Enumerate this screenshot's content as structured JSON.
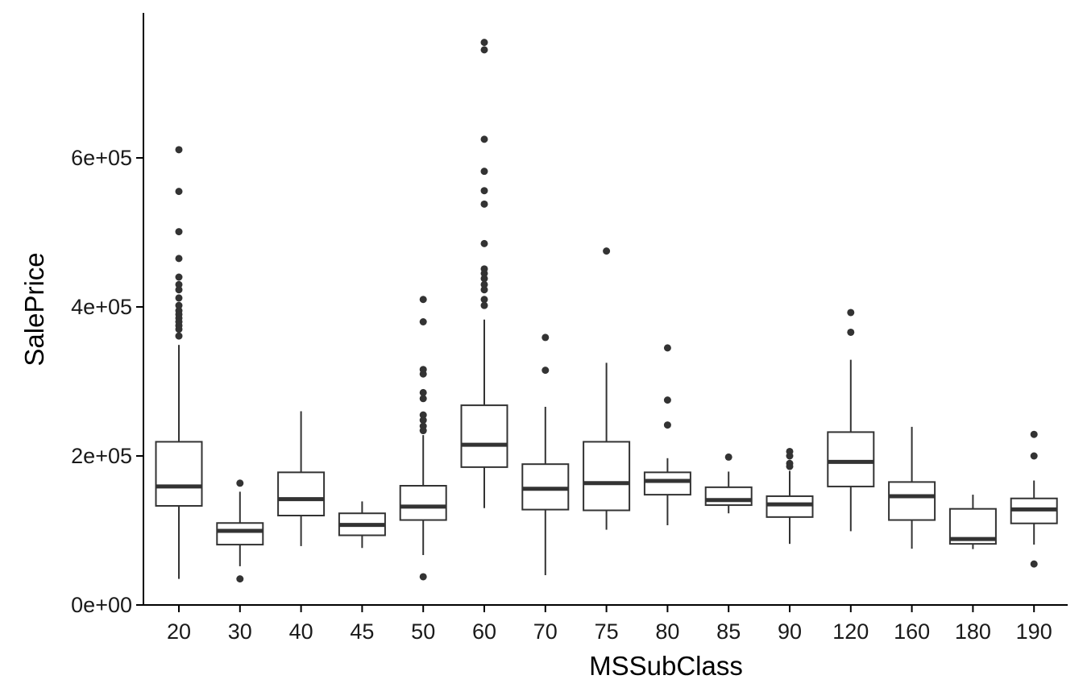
{
  "chart_data": {
    "type": "boxplot",
    "xlabel": "MSSubClass",
    "ylabel": "SalePrice",
    "ylim": [
      0,
      790000
    ],
    "yticks": [
      {
        "value": 0,
        "label": "0e+00"
      },
      {
        "value": 200000,
        "label": "2e+05"
      },
      {
        "value": 400000,
        "label": "4e+05"
      },
      {
        "value": 600000,
        "label": "6e+05"
      }
    ],
    "grid": false,
    "categories": [
      "20",
      "30",
      "40",
      "45",
      "50",
      "60",
      "70",
      "75",
      "80",
      "85",
      "90",
      "120",
      "160",
      "180",
      "190"
    ],
    "boxes": [
      {
        "category": "20",
        "whisker_low": 35000,
        "q1": 133000,
        "median": 159000,
        "q3": 219000,
        "whisker_high": 349000,
        "outliers": [
          611000,
          555000,
          501000,
          465000,
          440000,
          430000,
          423000,
          412000,
          402000,
          395000,
          390000,
          385000,
          380000,
          375000,
          370000,
          361000
        ]
      },
      {
        "category": "30",
        "whisker_low": 52000,
        "q1": 81000,
        "median": 99500,
        "q3": 110000,
        "whisker_high": 152000,
        "outliers": [
          163500,
          35000
        ]
      },
      {
        "category": "40",
        "whisker_low": 79000,
        "q1": 120000,
        "median": 142000,
        "q3": 178000,
        "whisker_high": 260000,
        "outliers": []
      },
      {
        "category": "45",
        "whisker_low": 76500,
        "q1": 93500,
        "median": 107500,
        "q3": 123000,
        "whisker_high": 139000,
        "outliers": []
      },
      {
        "category": "50",
        "whisker_low": 67000,
        "q1": 114000,
        "median": 132000,
        "q3": 160000,
        "whisker_high": 228000,
        "outliers": [
          410000,
          380000,
          316000,
          310000,
          285000,
          277000,
          255000,
          248000,
          240000,
          234000,
          37900
        ]
      },
      {
        "category": "60",
        "whisker_low": 130000,
        "q1": 185000,
        "median": 215000,
        "q3": 268000,
        "whisker_high": 383000,
        "outliers": [
          755000,
          745000,
          625000,
          582000,
          556000,
          538000,
          485000,
          451000,
          445000,
          438000,
          430000,
          423000,
          410000,
          402000
        ]
      },
      {
        "category": "70",
        "whisker_low": 40000,
        "q1": 128000,
        "median": 156000,
        "q3": 189000,
        "whisker_high": 266000,
        "outliers": [
          359000,
          315000
        ]
      },
      {
        "category": "75",
        "whisker_low": 101000,
        "q1": 127000,
        "median": 163500,
        "q3": 219000,
        "whisker_high": 325000,
        "outliers": [
          475000
        ]
      },
      {
        "category": "80",
        "whisker_low": 107000,
        "q1": 148000,
        "median": 166500,
        "q3": 178000,
        "whisker_high": 197000,
        "outliers": [
          345000,
          275000,
          241500
        ]
      },
      {
        "category": "85",
        "whisker_low": 123000,
        "q1": 134000,
        "median": 140750,
        "q3": 158000,
        "whisker_high": 179000,
        "outliers": [
          198500
        ]
      },
      {
        "category": "90",
        "whisker_low": 82000,
        "q1": 118000,
        "median": 135000,
        "q3": 146000,
        "whisker_high": 180000,
        "outliers": [
          206000,
          200000,
          190000,
          186000
        ]
      },
      {
        "category": "120",
        "whisker_low": 99000,
        "q1": 159000,
        "median": 192000,
        "q3": 232000,
        "whisker_high": 329000,
        "outliers": [
          392500,
          366000
        ]
      },
      {
        "category": "160",
        "whisker_low": 75500,
        "q1": 114000,
        "median": 146000,
        "q3": 165000,
        "whisker_high": 239000,
        "outliers": []
      },
      {
        "category": "180",
        "whisker_low": 75000,
        "q1": 82000,
        "median": 88500,
        "q3": 129000,
        "whisker_high": 148000,
        "outliers": []
      },
      {
        "category": "190",
        "whisker_low": 81000,
        "q1": 109500,
        "median": 128250,
        "q3": 143000,
        "whisker_high": 167000,
        "outliers": [
          228950,
          200000,
          55000
        ]
      }
    ],
    "colors": {
      "box_stroke": "#333333",
      "box_fill": "#ffffff",
      "outlier": "#333333",
      "axis": "#000000"
    }
  }
}
